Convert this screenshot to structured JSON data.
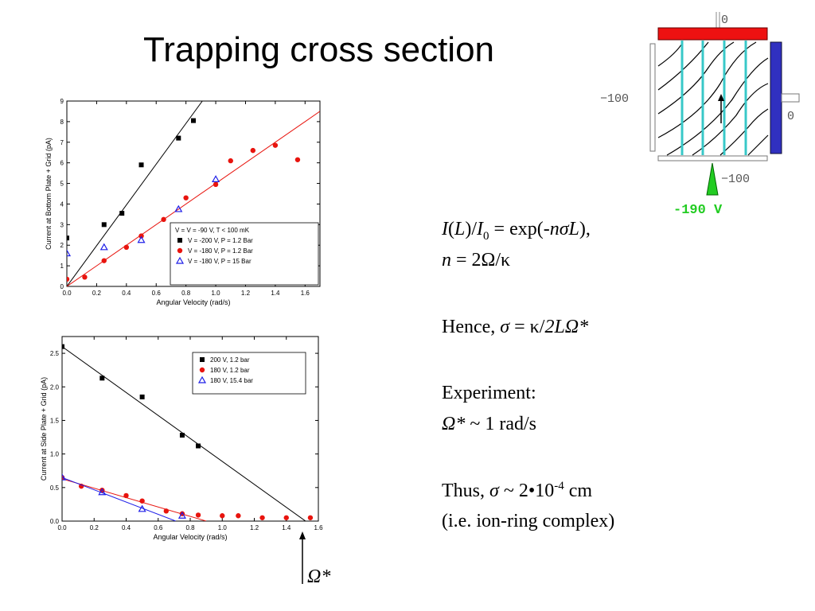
{
  "title": "Trapping cross section",
  "colors": {
    "black": "#000000",
    "red": "#e8140e",
    "blue": "#1e1ee8",
    "cyan": "#38c8c8",
    "plate_red": "#ee1111",
    "plate_blue": "#3030c0",
    "green": "#22cc22"
  },
  "chart_data": [
    {
      "type": "scatter",
      "title": "",
      "xlabel": "Angular Velocity (rad/s)",
      "ylabel": "Current at Bottom Plate + Grid (pA)",
      "xlim": [
        0,
        1.7
      ],
      "ylim": [
        0,
        9
      ],
      "x_ticks": [
        "0.0",
        "0.2",
        "0.4",
        "0.6",
        "0.8",
        "1.0",
        "1.2",
        "1.4",
        "1.6"
      ],
      "y_ticks": [
        "0",
        "1",
        "2",
        "3",
        "4",
        "5",
        "6",
        "7",
        "8",
        "9"
      ],
      "legend_title": "V  = V     = -90 V, T < 100 mK",
      "legend_position": "bottom-right",
      "series": [
        {
          "name": "V  = -200 V, P = 1.2 Bar",
          "marker": "square",
          "color": "#000000",
          "x": [
            0.0,
            0.25,
            0.37,
            0.5,
            0.75,
            0.85
          ],
          "y": [
            2.35,
            3.0,
            3.55,
            5.9,
            7.2,
            8.05
          ],
          "fit": [
            [
              0.0,
              0.0
            ],
            [
              0.91,
              9.0
            ]
          ]
        },
        {
          "name": "V  = -180 V, P = 1.2 Bar",
          "marker": "circle",
          "color": "#e8140e",
          "x": [
            0.0,
            0.12,
            0.25,
            0.4,
            0.5,
            0.65,
            0.8,
            1.0,
            1.1,
            1.25,
            1.4,
            1.55
          ],
          "y": [
            0.35,
            0.45,
            1.25,
            1.9,
            2.45,
            3.25,
            4.3,
            4.95,
            6.1,
            6.6,
            6.85,
            6.15
          ],
          "fit": [
            [
              0.0,
              0.0
            ],
            [
              1.7,
              8.5
            ]
          ]
        },
        {
          "name": "V  = -180 V, P = 15 Bar",
          "marker": "triangle",
          "color": "#1e1ee8",
          "x": [
            0.0,
            0.25,
            0.5,
            0.75,
            1.0
          ],
          "y": [
            1.6,
            1.9,
            2.25,
            3.75,
            5.2
          ]
        }
      ]
    },
    {
      "type": "scatter",
      "title": "",
      "xlabel": "Angular Velocity (rad/s)",
      "ylabel": "Current at Side Plate + Grid (pA)",
      "xlim": [
        0,
        1.6
      ],
      "ylim": [
        0,
        2.75
      ],
      "x_ticks": [
        "0.0",
        "0.2",
        "0.4",
        "0.6",
        "0.8",
        "1.0",
        "1.2",
        "1.4",
        "1.6"
      ],
      "y_ticks": [
        "0.0",
        "0.5",
        "1.0",
        "1.5",
        "2.0",
        "2.5"
      ],
      "legend_position": "top-right",
      "series": [
        {
          "name": "200 V, 1.2 bar",
          "marker": "square",
          "color": "#000000",
          "x": [
            0.0,
            0.25,
            0.5,
            0.75,
            0.85
          ],
          "y": [
            2.6,
            2.13,
            1.85,
            1.28,
            1.12
          ],
          "fit": [
            [
              0.0,
              2.6
            ],
            [
              1.52,
              0.0
            ]
          ]
        },
        {
          "name": "180 V, 1.2 bar",
          "marker": "circle",
          "color": "#e8140e",
          "x": [
            0.0,
            0.12,
            0.25,
            0.4,
            0.5,
            0.65,
            0.75,
            0.85,
            1.0,
            1.1,
            1.25,
            1.4,
            1.55
          ],
          "y": [
            0.65,
            0.52,
            0.46,
            0.38,
            0.3,
            0.15,
            0.11,
            0.09,
            0.08,
            0.08,
            0.05,
            0.05,
            0.05
          ],
          "fit": [
            [
              0.0,
              0.63
            ],
            [
              0.9,
              0.0
            ]
          ]
        },
        {
          "name": "180 V, 15.4 bar",
          "marker": "triangle",
          "color": "#1e1ee8",
          "x": [
            0.0,
            0.25,
            0.5,
            0.75
          ],
          "y": [
            0.65,
            0.43,
            0.18,
            0.08
          ],
          "fit": [
            [
              0.0,
              0.65
            ],
            [
              0.71,
              0.0
            ]
          ]
        }
      ]
    }
  ],
  "diagram": {
    "top_label": "0",
    "left_label": "−100",
    "right_label": "0",
    "bottom_label": "−100",
    "voltage_label": "-190 V"
  },
  "equations": {
    "line1": "I(L)/I0 = exp(-nσL),",
    "line2": "n = 2Ω/κ",
    "line3": "Hence, σ = κ/2LΩ*",
    "line4": "Experiment:",
    "line5": "Ω* ~ 1 rad/s",
    "line6": "Thus, σ ~ 2•10-4 cm",
    "line7": "(i.e. ion-ring complex)"
  },
  "omega_marker_label": "Ω*"
}
